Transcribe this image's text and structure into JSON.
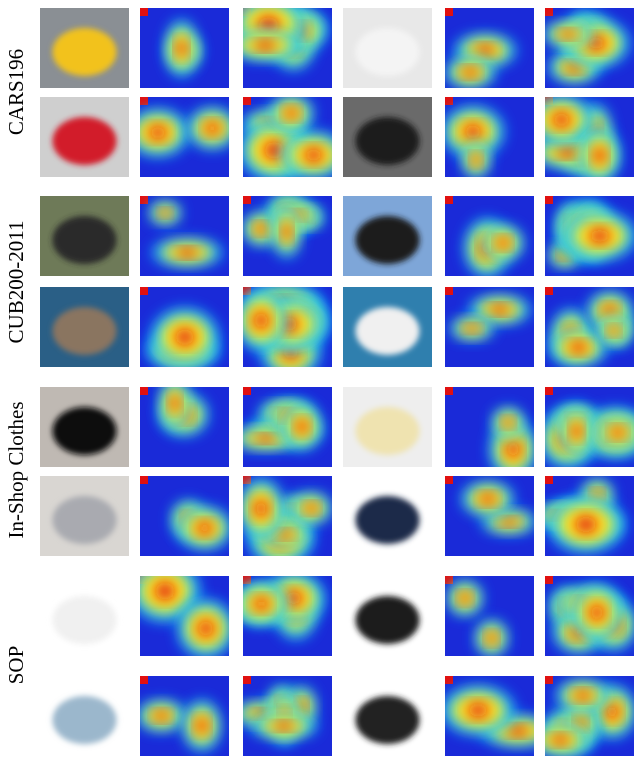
{
  "groups": [
    {
      "label": "CARS196"
    },
    {
      "label": "CUB200-2011"
    },
    {
      "label": "In-Shop Clothes"
    },
    {
      "label": "SOP"
    }
  ]
}
